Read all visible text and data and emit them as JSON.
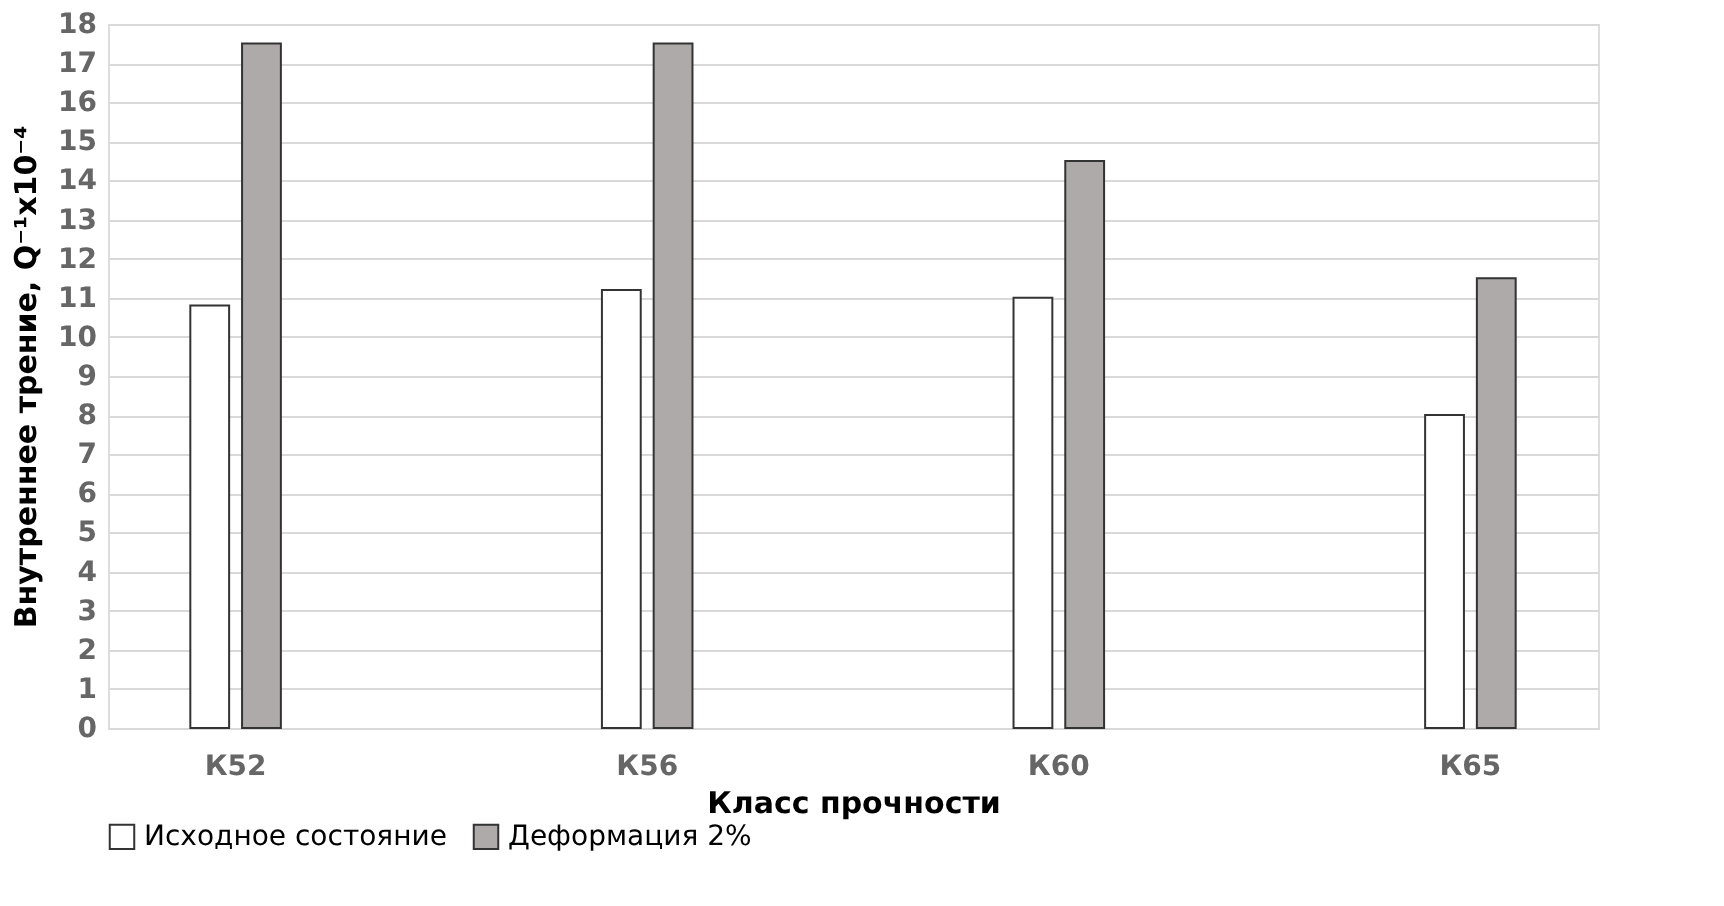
{
  "chart_data": {
    "type": "bar",
    "xlabel": "Класс прочности",
    "ylabel": "Внутреннее трение, Q⁻¹x10⁻⁴",
    "categories": [
      "К52",
      "К56",
      "К60",
      "К65"
    ],
    "series": [
      {
        "name": "Исходное состояние",
        "color": "#ffffff",
        "values": [
          10.8,
          11.2,
          11.0,
          8.0
        ]
      },
      {
        "name": "Деформация 2%",
        "color": "#aeaaaa",
        "values": [
          17.5,
          17.5,
          14.5,
          11.5
        ]
      }
    ],
    "ylim": [
      0,
      18
    ],
    "yticks": [
      0,
      1,
      2,
      3,
      4,
      5,
      6,
      7,
      8,
      9,
      10,
      11,
      12,
      13,
      14,
      15,
      16,
      17,
      18
    ],
    "grid": "y",
    "legend": "bottom"
  }
}
